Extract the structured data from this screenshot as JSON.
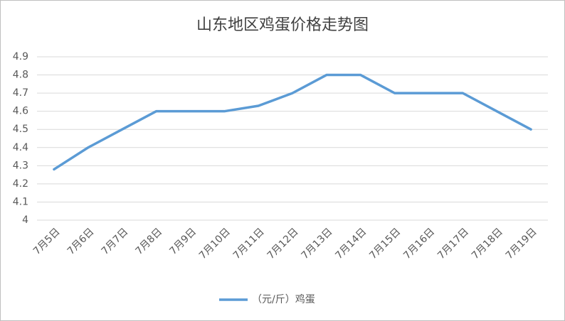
{
  "chart_data": {
    "type": "line",
    "title": "山东地区鸡蛋价格走势图",
    "categories": [
      "7月5日",
      "7月6日",
      "7月7日",
      "7月8日",
      "7月9日",
      "7月10日",
      "7月11日",
      "7月12日",
      "7月13日",
      "7月14日",
      "7月15日",
      "7月16日",
      "7月17日",
      "7月18日",
      "7月19日"
    ],
    "series": [
      {
        "name": "（元/斤）鸡蛋",
        "color": "#5b9bd5",
        "values": [
          4.28,
          4.4,
          4.5,
          4.6,
          4.6,
          4.6,
          4.63,
          4.7,
          4.8,
          4.8,
          4.7,
          4.7,
          4.7,
          4.6,
          4.5
        ]
      }
    ],
    "ylim": [
      4,
      4.9
    ],
    "yticks": [
      4,
      4.1,
      4.2,
      4.3,
      4.4,
      4.5,
      4.6,
      4.7,
      4.8,
      4.9
    ],
    "grid": true,
    "legend": "bottom"
  }
}
